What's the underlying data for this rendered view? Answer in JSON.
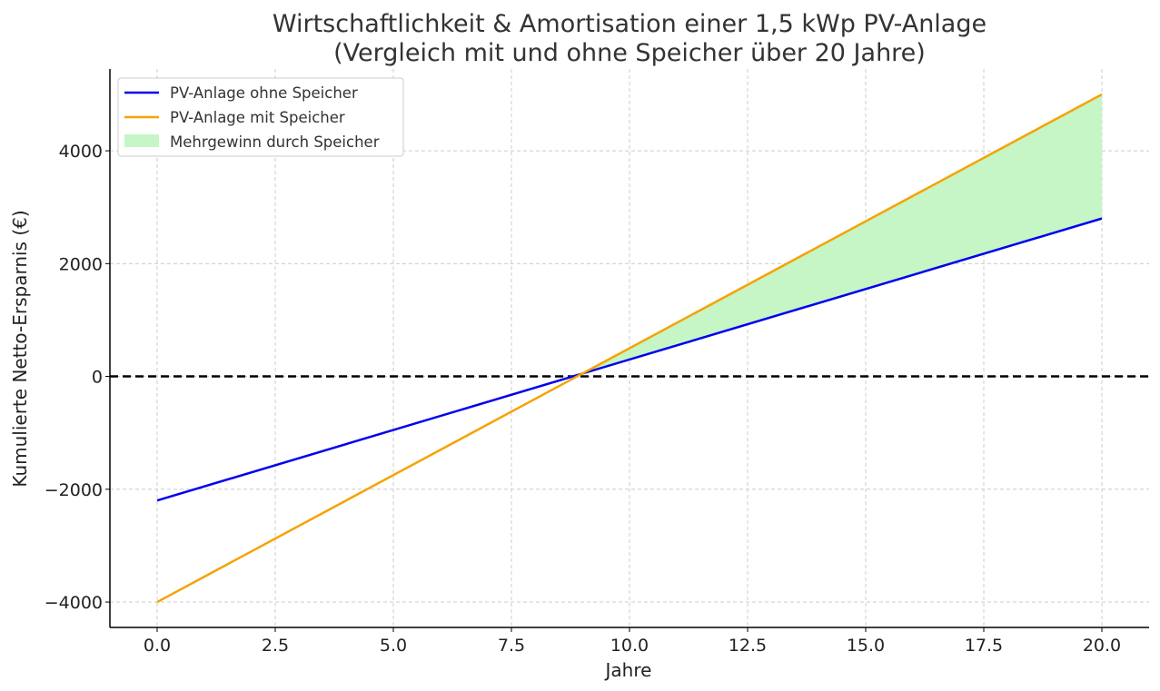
{
  "chart_data": {
    "type": "line",
    "title_lines": [
      "Wirtschaftlichkeit & Amortisation einer 1,5 kWp PV-Anlage",
      "(Vergleich mit und ohne Speicher über 20 Jahre)"
    ],
    "xlabel": "Jahre",
    "ylabel": "Kumulierte Netto-Ersparnis (€)",
    "xlim": [
      -1,
      21
    ],
    "ylim": [
      -4450,
      5450
    ],
    "x_ticks": [
      0,
      2.5,
      5,
      7.5,
      10,
      12.5,
      15,
      17.5,
      20
    ],
    "x_tick_labels": [
      "0.0",
      "2.5",
      "5.0",
      "7.5",
      "10.0",
      "12.5",
      "15.0",
      "17.5",
      "20.0"
    ],
    "y_ticks": [
      -4000,
      -2000,
      0,
      2000,
      4000
    ],
    "y_tick_labels": [
      "−4000",
      "−2000",
      "0",
      "2000",
      "4000"
    ],
    "grid": true,
    "legend_position": "top-left",
    "reference_line": {
      "y": 0,
      "style": "dashed",
      "color": "#000000"
    },
    "series": [
      {
        "name": "PV-Anlage ohne Speicher",
        "color": "#0000ee",
        "x": [
          0,
          20
        ],
        "values": [
          -2200,
          2800
        ]
      },
      {
        "name": "PV-Anlage mit Speicher",
        "color": "#f5a300",
        "x": [
          0,
          20
        ],
        "values": [
          -4000,
          5000
        ]
      }
    ],
    "fill_area": {
      "name": "Mehrgewinn durch Speicher",
      "color": "#c6f5c6",
      "x_from": 9,
      "x_to": 20,
      "between": [
        "PV-Anlage ohne Speicher",
        "PV-Anlage mit Speicher"
      ]
    }
  }
}
